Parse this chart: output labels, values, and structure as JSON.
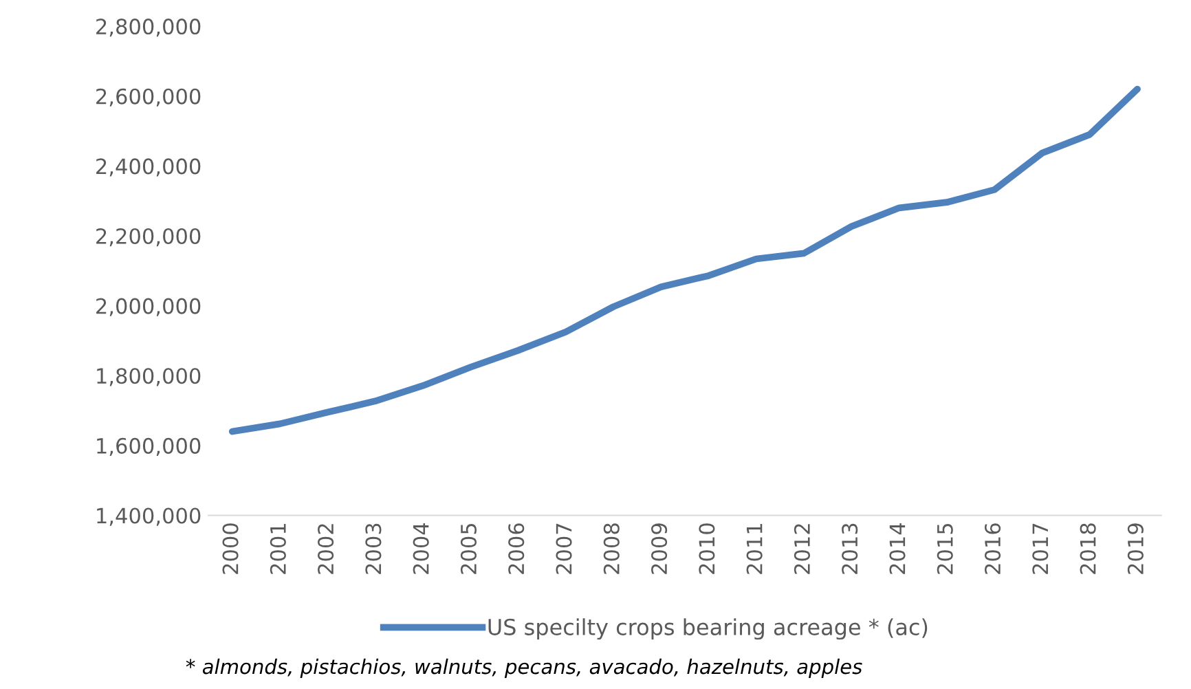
{
  "chart_data": {
    "type": "line",
    "categories": [
      "2000",
      "2001",
      "2002",
      "2003",
      "2004",
      "2005",
      "2006",
      "2007",
      "2008",
      "2009",
      "2010",
      "2011",
      "2012",
      "2013",
      "2014",
      "2015",
      "2016",
      "2017",
      "2018",
      "2019"
    ],
    "series": [
      {
        "name": "US specilty crops bearing acreage * (ac)",
        "color": "#4f81bd",
        "values": [
          1640000,
          1662000,
          1695000,
          1727000,
          1771000,
          1824000,
          1872000,
          1925000,
          1997000,
          2054000,
          2086000,
          2134000,
          2150000,
          2227000,
          2280000,
          2296000,
          2332000,
          2437000,
          2490000,
          2620000
        ]
      }
    ],
    "ylim": [
      1400000,
      2800000
    ],
    "yticks": [
      {
        "value": 1400000,
        "label": "1,400,000"
      },
      {
        "value": 1600000,
        "label": "1,600,000"
      },
      {
        "value": 1800000,
        "label": "1,800,000"
      },
      {
        "value": 2000000,
        "label": "2,000,000"
      },
      {
        "value": 2200000,
        "label": "2,200,000"
      },
      {
        "value": 2400000,
        "label": "2,400,000"
      },
      {
        "value": 2600000,
        "label": "2,600,000"
      },
      {
        "value": 2800000,
        "label": "2,800,000"
      }
    ],
    "grid": false,
    "legend": "bottom",
    "marker": "none",
    "line_style": "solid",
    "annotations": [
      "* almonds, pistachios, walnuts, pecans, avacado, hazelnuts, apples"
    ]
  }
}
